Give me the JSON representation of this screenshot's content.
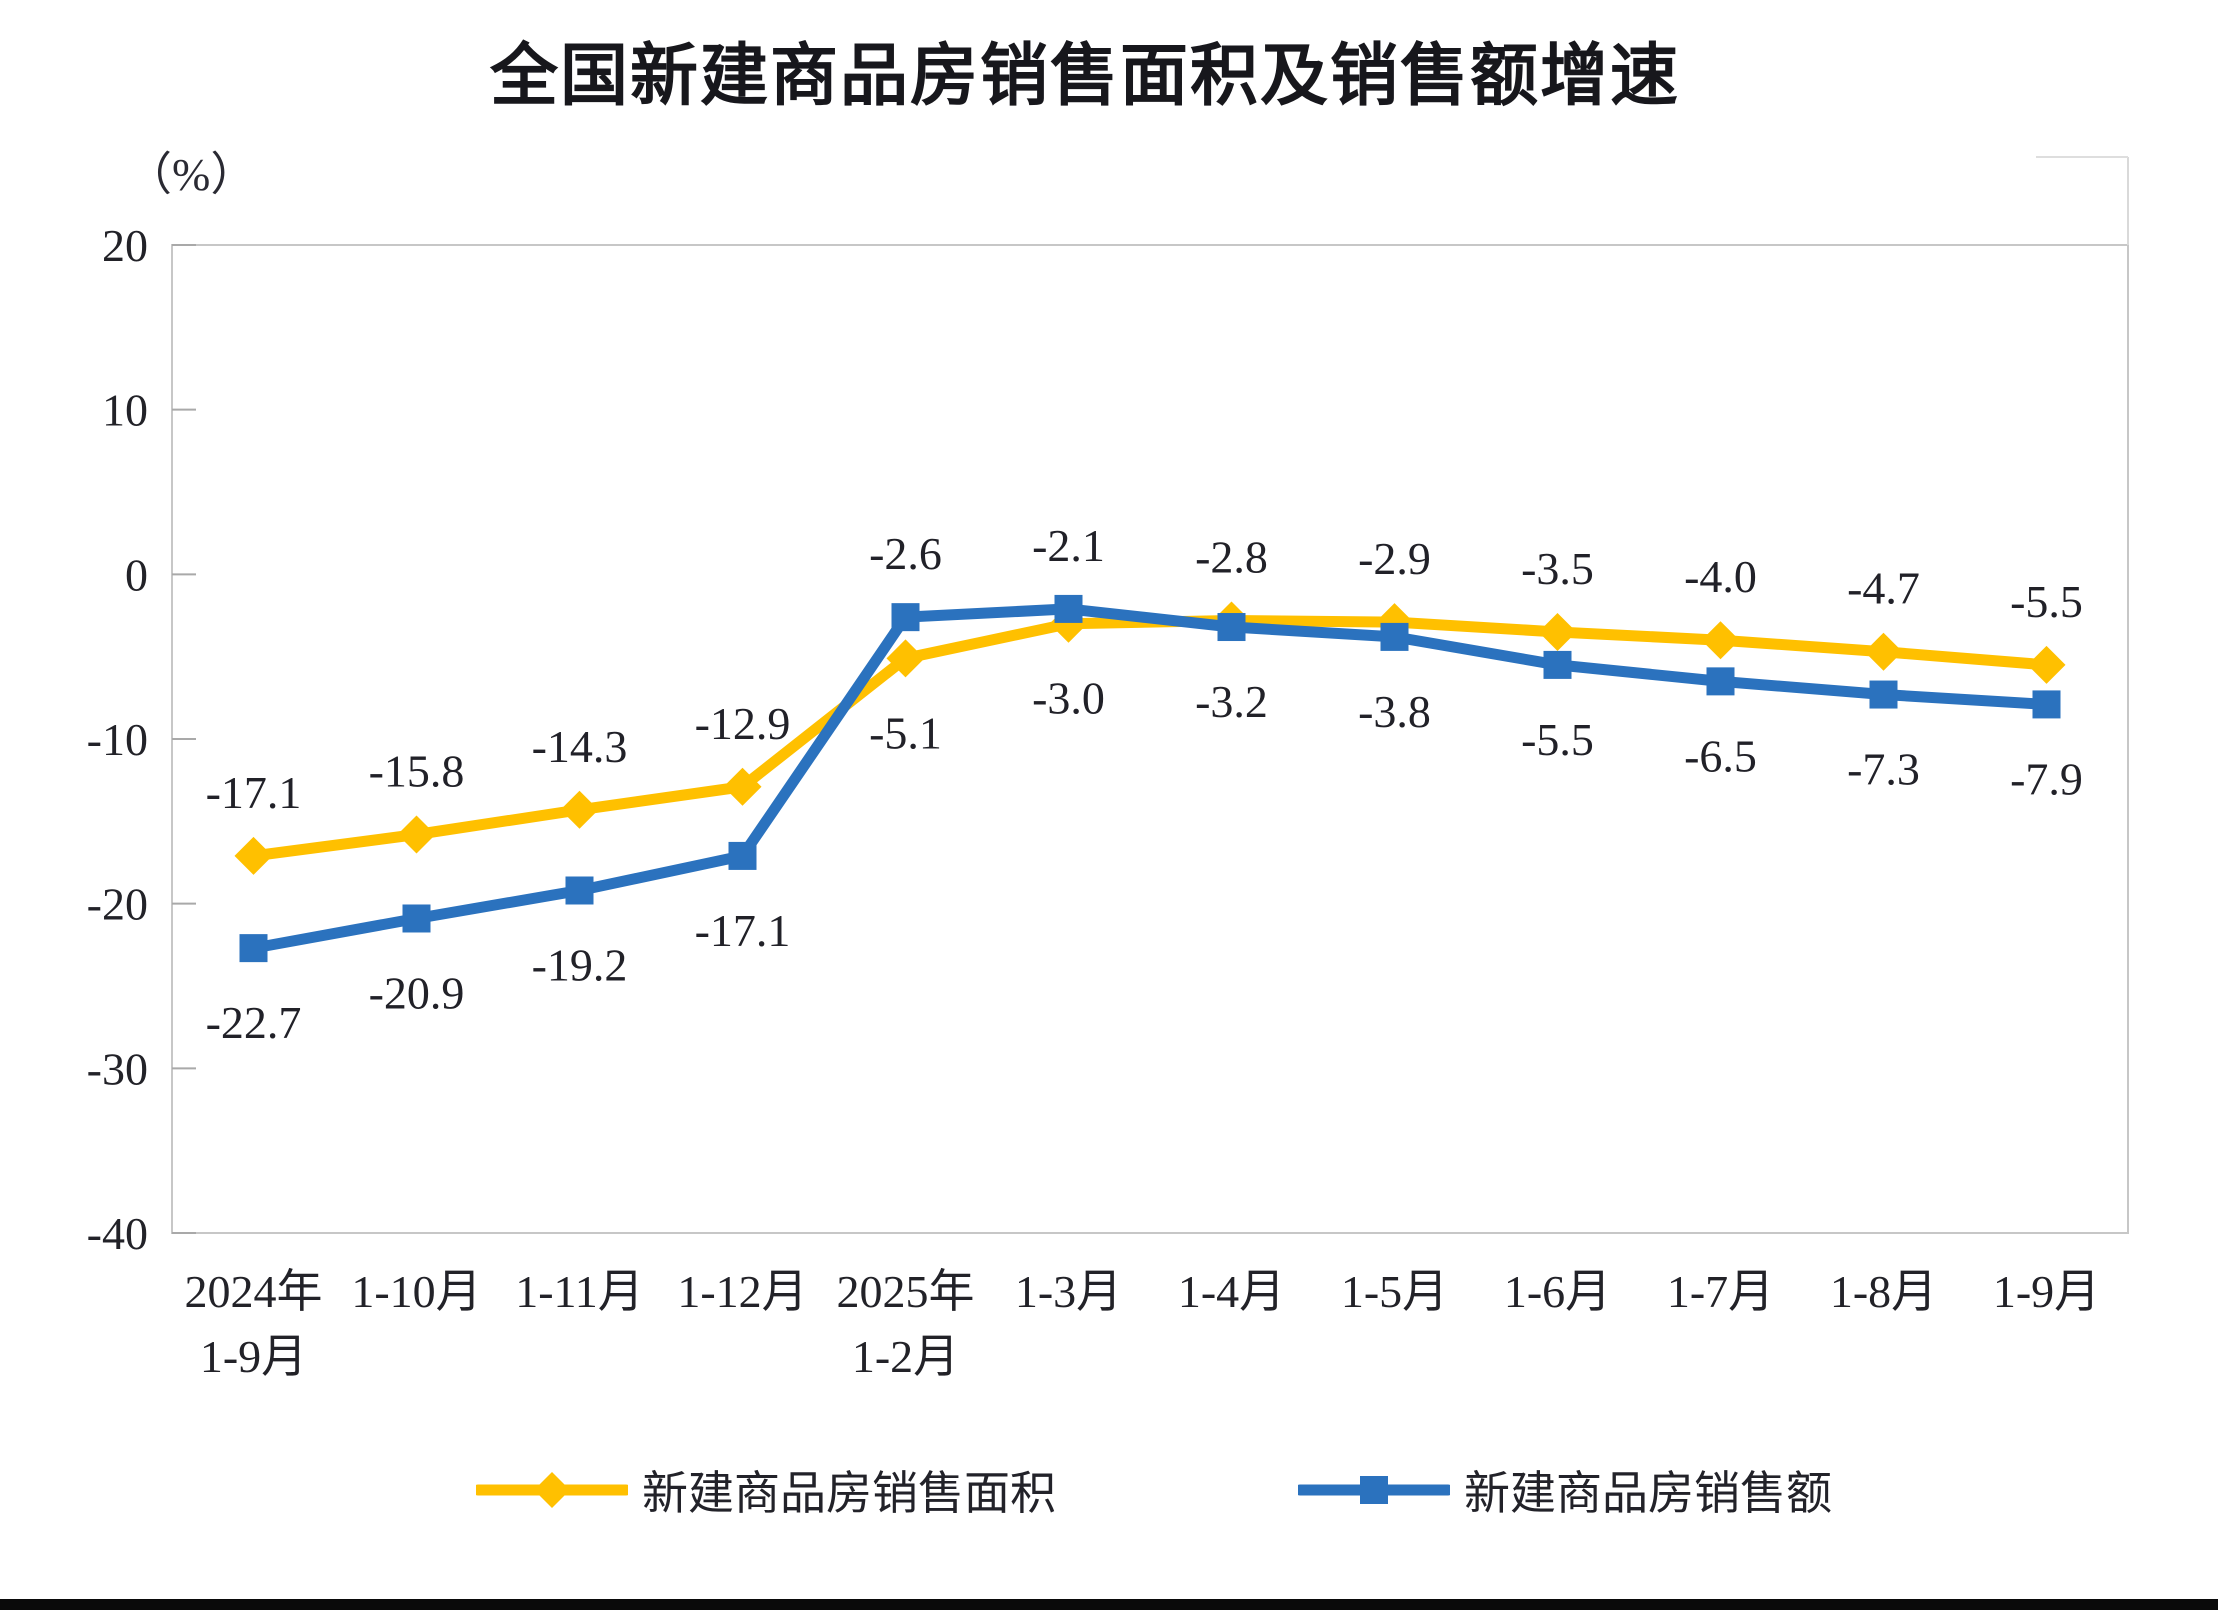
{
  "page": {
    "background_color": "#ffffff",
    "bottom_bar_color": "#0a0a0a"
  },
  "chart_data": {
    "type": "line",
    "title": "全国新建商品房销售面积及销售额增速",
    "ylabel": "（%）",
    "categories": [
      "2024年\n1-9月",
      "1-10月",
      "1-11月",
      "1-12月",
      "2025年\n1-2月",
      "1-3月",
      "1-4月",
      "1-5月",
      "1-6月",
      "1-7月",
      "1-8月",
      "1-9月"
    ],
    "y_ticks": [
      20,
      10,
      0,
      -10,
      -20,
      -30,
      -40
    ],
    "ylim": [
      -40,
      20
    ],
    "grid": false,
    "legend_position": "bottom",
    "series": [
      {
        "name": "新建商品房销售面积",
        "color": "#FFC000",
        "marker": "diamond",
        "values": [
          -17.1,
          -15.8,
          -14.3,
          -12.9,
          -5.1,
          -3.0,
          -2.8,
          -2.9,
          -3.5,
          -4.0,
          -4.7,
          -5.5
        ]
      },
      {
        "name": "新建商品房销售额",
        "color": "#2B72BE",
        "marker": "square",
        "values": [
          -22.7,
          -20.9,
          -19.2,
          -17.1,
          -2.6,
          -2.1,
          -3.2,
          -3.8,
          -5.5,
          -6.5,
          -7.3,
          -7.9
        ]
      }
    ],
    "style_colors": {
      "plot_border": "#c7c7c7",
      "tick_mark": "#a9a9a9",
      "axis_text": "#222228",
      "data_label_text": "#212128",
      "title_text": "#17171c"
    }
  }
}
